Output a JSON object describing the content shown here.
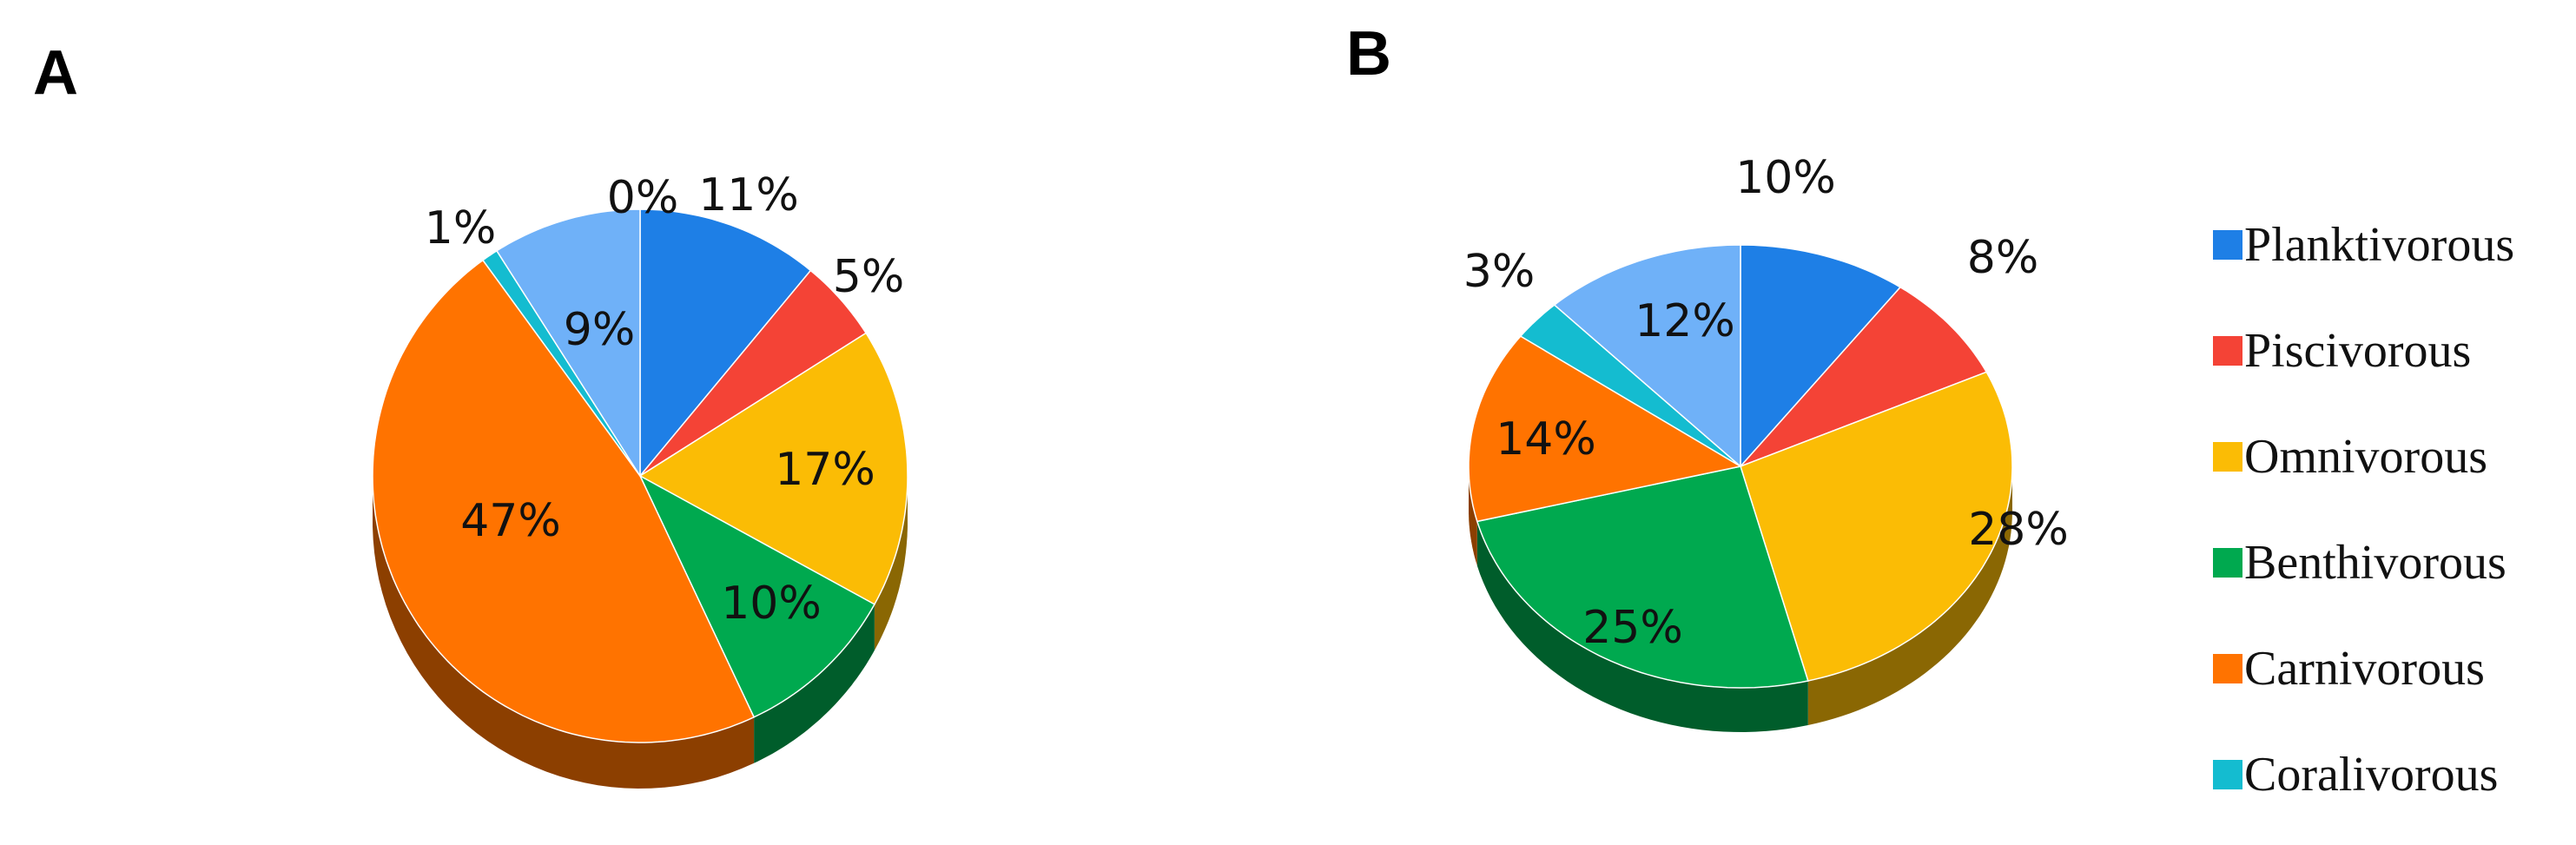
{
  "panels": {
    "a": {
      "letter": "A"
    },
    "b": {
      "letter": "B"
    }
  },
  "legend": {
    "items": [
      {
        "label": "Planktivorous",
        "color": "#1e7fe6"
      },
      {
        "label": "Piscivorous",
        "color": "#f44336"
      },
      {
        "label": "Omnivorous",
        "color": "#fbbc05"
      },
      {
        "label": "Benthivorous",
        "color": "#00a94f"
      },
      {
        "label": "Carnivorous",
        "color": "#ff7300"
      },
      {
        "label": "Coralivorous",
        "color": "#14bcd0"
      }
    ]
  },
  "chart_data": [
    {
      "type": "pie",
      "panel": "A",
      "title": "",
      "style": "3d-tilted",
      "slices": [
        {
          "category": "Planktivorous",
          "value": 11,
          "label": "11%",
          "color": "#1e7fe6"
        },
        {
          "category": "Piscivorous",
          "value": 5,
          "label": "5%",
          "color": "#f44336"
        },
        {
          "category": "Omnivorous",
          "value": 17,
          "label": "17%",
          "color": "#fbbc05"
        },
        {
          "category": "Benthivorous",
          "value": 10,
          "label": "10%",
          "color": "#00a94f"
        },
        {
          "category": "Carnivorous",
          "value": 47,
          "label": "47%",
          "color": "#ff7300"
        },
        {
          "category": "Coralivorous",
          "value": 1,
          "label": "1%",
          "color": "#14bcd0"
        },
        {
          "category": "",
          "value": 0,
          "label": "0%",
          "color": "#a3cbf5"
        },
        {
          "category": "",
          "value": 9,
          "label": "9%",
          "color": "#6fb1f8"
        }
      ]
    },
    {
      "type": "pie",
      "panel": "B",
      "title": "",
      "style": "3d-tilted",
      "slices": [
        {
          "category": "Planktivorous",
          "value": 10,
          "label": "10%",
          "color": "#1e7fe6"
        },
        {
          "category": "Piscivorous",
          "value": 8,
          "label": "8%",
          "color": "#f44336"
        },
        {
          "category": "Omnivorous",
          "value": 28,
          "label": "28%",
          "color": "#fbbc05"
        },
        {
          "category": "Benthivorous",
          "value": 25,
          "label": "25%",
          "color": "#00a94f"
        },
        {
          "category": "Carnivorous",
          "value": 14,
          "label": "14%",
          "color": "#ff7300"
        },
        {
          "category": "Coralivorous",
          "value": 3,
          "label": "3%",
          "color": "#14bcd0"
        },
        {
          "category": "",
          "value": 12,
          "label": "12%",
          "color": "#6fb1f8"
        }
      ]
    }
  ]
}
